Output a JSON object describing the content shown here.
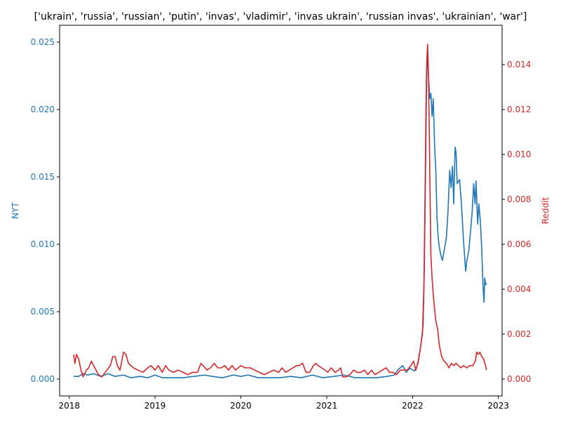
{
  "chart_data": {
    "type": "line",
    "title": "['ukrain', 'russia', 'russian', 'putin', 'invas', 'vladimir', 'invas ukrain', 'russian invas', 'ukrainian', 'war']",
    "x": {
      "kind": "date",
      "range": [
        "2017-11-21",
        "2023-01-17"
      ],
      "ticks": [
        "2018-01-01",
        "2019-01-01",
        "2020-01-01",
        "2021-01-01",
        "2022-01-01",
        "2023-01-01"
      ],
      "tick_labels": [
        "2018",
        "2019",
        "2020",
        "2021",
        "2022",
        "2023"
      ]
    },
    "y_left": {
      "label": "NYT",
      "color": "#1f77b4",
      "ylim": [
        -0.00125,
        0.02625
      ],
      "ticks": [
        0.0,
        0.005,
        0.01,
        0.015,
        0.02,
        0.025
      ],
      "tick_labels": [
        "0.000",
        "0.005",
        "0.010",
        "0.015",
        "0.020",
        "0.025"
      ]
    },
    "y_right": {
      "label": "Reddit",
      "color": "#d62728",
      "ylim": [
        -0.00075,
        0.01575
      ],
      "ticks": [
        0.0,
        0.002,
        0.004,
        0.006,
        0.008,
        0.01,
        0.012,
        0.014
      ],
      "tick_labels": [
        "0.000",
        "0.002",
        "0.004",
        "0.006",
        "0.008",
        "0.010",
        "0.012",
        "0.014"
      ]
    },
    "series": [
      {
        "axis": "left",
        "color": "#1f77b4",
        "points": [
          [
            "2018-01-20",
            0.0002
          ],
          [
            "2018-02-10",
            0.0002
          ],
          [
            "2018-03-01",
            0.0004
          ],
          [
            "2018-03-20",
            0.0003
          ],
          [
            "2018-04-15",
            0.0004
          ],
          [
            "2018-05-15",
            0.0002
          ],
          [
            "2018-06-15",
            0.0004
          ],
          [
            "2018-07-15",
            0.0002
          ],
          [
            "2018-08-20",
            0.0003
          ],
          [
            "2018-09-20",
            0.0001
          ],
          [
            "2018-11-01",
            0.0002
          ],
          [
            "2018-12-01",
            0.0001
          ],
          [
            "2019-01-01",
            0.0003
          ],
          [
            "2019-02-01",
            0.0001
          ],
          [
            "2019-03-15",
            0.0001
          ],
          [
            "2019-05-01",
            0.0001
          ],
          [
            "2019-06-15",
            0.0002
          ],
          [
            "2019-08-01",
            0.0003
          ],
          [
            "2019-09-01",
            0.0002
          ],
          [
            "2019-10-15",
            0.0001
          ],
          [
            "2019-12-01",
            0.0003
          ],
          [
            "2020-01-01",
            0.0002
          ],
          [
            "2020-02-01",
            0.0003
          ],
          [
            "2020-03-15",
            0.0001
          ],
          [
            "2020-05-01",
            0.0001
          ],
          [
            "2020-06-15",
            0.0001
          ],
          [
            "2020-08-01",
            0.0002
          ],
          [
            "2020-09-15",
            0.0001
          ],
          [
            "2020-11-01",
            0.0003
          ],
          [
            "2020-12-15",
            0.0001
          ],
          [
            "2021-02-01",
            0.0002
          ],
          [
            "2021-03-15",
            0.0003
          ],
          [
            "2021-05-01",
            0.0001
          ],
          [
            "2021-06-15",
            0.0001
          ],
          [
            "2021-08-01",
            0.0001
          ],
          [
            "2021-09-15",
            0.0002
          ],
          [
            "2021-10-15",
            0.0003
          ],
          [
            "2021-11-01",
            0.0007
          ],
          [
            "2021-11-20",
            0.001
          ],
          [
            "2021-12-05",
            0.0005
          ],
          [
            "2021-12-20",
            0.0008
          ],
          [
            "2022-01-10",
            0.0006
          ],
          [
            "2022-01-25",
            0.0012
          ],
          [
            "2022-02-05",
            0.0025
          ],
          [
            "2022-02-15",
            0.004
          ],
          [
            "2022-02-20",
            0.008
          ],
          [
            "2022-02-25",
            0.015
          ],
          [
            "2022-03-01",
            0.021
          ],
          [
            "2022-03-05",
            0.0245
          ],
          [
            "2022-03-10",
            0.0225
          ],
          [
            "2022-03-15",
            0.0208
          ],
          [
            "2022-03-20",
            0.0212
          ],
          [
            "2022-03-25",
            0.0195
          ],
          [
            "2022-03-30",
            0.0208
          ],
          [
            "2022-04-02",
            0.019
          ],
          [
            "2022-04-05",
            0.0172
          ],
          [
            "2022-04-10",
            0.0155
          ],
          [
            "2022-04-15",
            0.012
          ],
          [
            "2022-04-20",
            0.0105
          ],
          [
            "2022-04-25",
            0.0098
          ],
          [
            "2022-05-01",
            0.0092
          ],
          [
            "2022-05-08",
            0.0088
          ],
          [
            "2022-05-15",
            0.0095
          ],
          [
            "2022-05-25",
            0.0105
          ],
          [
            "2022-06-01",
            0.0125
          ],
          [
            "2022-06-08",
            0.0155
          ],
          [
            "2022-06-14",
            0.0142
          ],
          [
            "2022-06-20",
            0.0158
          ],
          [
            "2022-06-25",
            0.013
          ],
          [
            "2022-07-01",
            0.0172
          ],
          [
            "2022-07-05",
            0.0168
          ],
          [
            "2022-07-10",
            0.0145
          ],
          [
            "2022-07-20",
            0.0148
          ],
          [
            "2022-07-28",
            0.013
          ],
          [
            "2022-08-05",
            0.0105
          ],
          [
            "2022-08-10",
            0.0092
          ],
          [
            "2022-08-15",
            0.008
          ],
          [
            "2022-08-20",
            0.0088
          ],
          [
            "2022-08-28",
            0.0095
          ],
          [
            "2022-09-05",
            0.011
          ],
          [
            "2022-09-12",
            0.0125
          ],
          [
            "2022-09-18",
            0.0145
          ],
          [
            "2022-09-24",
            0.013
          ],
          [
            "2022-09-28",
            0.0147
          ],
          [
            "2022-10-05",
            0.0115
          ],
          [
            "2022-10-10",
            0.013
          ],
          [
            "2022-10-16",
            0.0118
          ],
          [
            "2022-10-22",
            0.0098
          ],
          [
            "2022-10-28",
            0.0068
          ],
          [
            "2022-11-01",
            0.0057
          ],
          [
            "2022-11-04",
            0.0075
          ],
          [
            "2022-11-08",
            0.007
          ],
          [
            "2022-11-12",
            0.0071
          ]
        ]
      },
      {
        "axis": "right",
        "color": "#d62728",
        "points": [
          [
            "2018-01-20",
            0.0011
          ],
          [
            "2018-01-25",
            0.0007
          ],
          [
            "2018-02-01",
            0.0011
          ],
          [
            "2018-02-10",
            0.0009
          ],
          [
            "2018-02-20",
            0.0004
          ],
          [
            "2018-03-01",
            0.0001
          ],
          [
            "2018-03-15",
            0.0004
          ],
          [
            "2018-03-25",
            0.0005
          ],
          [
            "2018-04-05",
            0.0008
          ],
          [
            "2018-04-10",
            0.0007
          ],
          [
            "2018-04-25",
            0.0004
          ],
          [
            "2018-05-05",
            0.0002
          ],
          [
            "2018-05-20",
            0.0001
          ],
          [
            "2018-06-10",
            0.0004
          ],
          [
            "2018-06-25",
            0.0006
          ],
          [
            "2018-07-05",
            0.001
          ],
          [
            "2018-07-15",
            0.001
          ],
          [
            "2018-07-25",
            0.0006
          ],
          [
            "2018-08-05",
            0.0004
          ],
          [
            "2018-08-20",
            0.0012
          ],
          [
            "2018-08-30",
            0.0011
          ],
          [
            "2018-09-10",
            0.0007
          ],
          [
            "2018-10-01",
            0.0005
          ],
          [
            "2018-10-20",
            0.0004
          ],
          [
            "2018-11-10",
            0.0003
          ],
          [
            "2018-12-01",
            0.0005
          ],
          [
            "2018-12-15",
            0.0006
          ],
          [
            "2019-01-01",
            0.0004
          ],
          [
            "2019-01-15",
            0.0006
          ],
          [
            "2019-02-01",
            0.0003
          ],
          [
            "2019-02-15",
            0.0006
          ],
          [
            "2019-03-01",
            0.0004
          ],
          [
            "2019-03-20",
            0.0003
          ],
          [
            "2019-04-10",
            0.0004
          ],
          [
            "2019-05-01",
            0.0003
          ],
          [
            "2019-05-20",
            0.0002
          ],
          [
            "2019-06-10",
            0.0003
          ],
          [
            "2019-07-01",
            0.0003
          ],
          [
            "2019-07-15",
            0.0007
          ],
          [
            "2019-07-25",
            0.0006
          ],
          [
            "2019-08-10",
            0.0004
          ],
          [
            "2019-08-25",
            0.0005
          ],
          [
            "2019-09-10",
            0.0007
          ],
          [
            "2019-09-25",
            0.0005
          ],
          [
            "2019-10-10",
            0.0005
          ],
          [
            "2019-10-25",
            0.0006
          ],
          [
            "2019-11-10",
            0.0004
          ],
          [
            "2019-11-25",
            0.0006
          ],
          [
            "2019-12-10",
            0.0004
          ],
          [
            "2020-01-01",
            0.0006
          ],
          [
            "2020-01-20",
            0.0005
          ],
          [
            "2020-02-10",
            0.0005
          ],
          [
            "2020-03-01",
            0.0004
          ],
          [
            "2020-03-20",
            0.0003
          ],
          [
            "2020-04-10",
            0.0002
          ],
          [
            "2020-05-01",
            0.0003
          ],
          [
            "2020-05-20",
            0.0004
          ],
          [
            "2020-06-10",
            0.0003
          ],
          [
            "2020-06-25",
            0.0005
          ],
          [
            "2020-07-10",
            0.0003
          ],
          [
            "2020-07-25",
            0.0004
          ],
          [
            "2020-08-10",
            0.0005
          ],
          [
            "2020-08-25",
            0.0006
          ],
          [
            "2020-09-05",
            0.0006
          ],
          [
            "2020-09-20",
            0.0007
          ],
          [
            "2020-10-05",
            0.0003
          ],
          [
            "2020-10-20",
            0.0003
          ],
          [
            "2020-11-05",
            0.0006
          ],
          [
            "2020-11-15",
            0.0007
          ],
          [
            "2020-11-25",
            0.0006
          ],
          [
            "2020-12-10",
            0.0005
          ],
          [
            "2020-12-25",
            0.0004
          ],
          [
            "2021-01-05",
            0.0003
          ],
          [
            "2021-01-20",
            0.0005
          ],
          [
            "2021-02-05",
            0.0003
          ],
          [
            "2021-02-20",
            0.0004
          ],
          [
            "2021-03-01",
            0.0005
          ],
          [
            "2021-03-10",
            0.0001
          ],
          [
            "2021-03-25",
            0.0001
          ],
          [
            "2021-04-10",
            0.0002
          ],
          [
            "2021-04-25",
            0.0004
          ],
          [
            "2021-05-10",
            0.0003
          ],
          [
            "2021-05-25",
            0.0003
          ],
          [
            "2021-06-10",
            0.0004
          ],
          [
            "2021-06-25",
            0.0002
          ],
          [
            "2021-07-10",
            0.0004
          ],
          [
            "2021-07-25",
            0.0002
          ],
          [
            "2021-08-10",
            0.0003
          ],
          [
            "2021-08-25",
            0.0004
          ],
          [
            "2021-09-10",
            0.0005
          ],
          [
            "2021-09-25",
            0.0003
          ],
          [
            "2021-10-10",
            0.0003
          ],
          [
            "2021-10-25",
            0.0002
          ],
          [
            "2021-11-10",
            0.0004
          ],
          [
            "2021-11-25",
            0.0004
          ],
          [
            "2021-12-10",
            0.0004
          ],
          [
            "2021-12-25",
            0.0006
          ],
          [
            "2022-01-05",
            0.0008
          ],
          [
            "2022-01-15",
            0.0004
          ],
          [
            "2022-01-25",
            0.0008
          ],
          [
            "2022-02-05",
            0.0015
          ],
          [
            "2022-02-12",
            0.002
          ],
          [
            "2022-02-18",
            0.004
          ],
          [
            "2022-02-23",
            0.008
          ],
          [
            "2022-02-27",
            0.012
          ],
          [
            "2022-03-02",
            0.014
          ],
          [
            "2022-03-06",
            0.0149
          ],
          [
            "2022-03-10",
            0.0135
          ],
          [
            "2022-03-15",
            0.0095
          ],
          [
            "2022-03-20",
            0.0055
          ],
          [
            "2022-03-25",
            0.0045
          ],
          [
            "2022-04-01",
            0.0035
          ],
          [
            "2022-04-10",
            0.0026
          ],
          [
            "2022-04-18",
            0.0022
          ],
          [
            "2022-04-25",
            0.0015
          ],
          [
            "2022-05-05",
            0.001
          ],
          [
            "2022-05-15",
            0.0008
          ],
          [
            "2022-05-25",
            0.0007
          ],
          [
            "2022-06-05",
            0.0005
          ],
          [
            "2022-06-15",
            0.0007
          ],
          [
            "2022-06-25",
            0.0006
          ],
          [
            "2022-07-05",
            0.0007
          ],
          [
            "2022-07-15",
            0.0006
          ],
          [
            "2022-07-25",
            0.0005
          ],
          [
            "2022-08-05",
            0.0006
          ],
          [
            "2022-08-20",
            0.0005
          ],
          [
            "2022-09-01",
            0.0006
          ],
          [
            "2022-09-15",
            0.0006
          ],
          [
            "2022-09-25",
            0.0008
          ],
          [
            "2022-10-01",
            0.0012
          ],
          [
            "2022-10-08",
            0.0011
          ],
          [
            "2022-10-15",
            0.0012
          ],
          [
            "2022-10-22",
            0.001
          ],
          [
            "2022-10-30",
            0.0009
          ],
          [
            "2022-11-05",
            0.0007
          ],
          [
            "2022-11-12",
            0.0004
          ]
        ]
      }
    ]
  }
}
